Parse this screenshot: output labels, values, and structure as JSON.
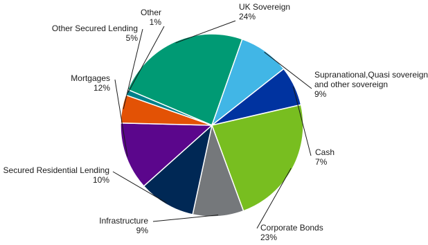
{
  "chart_data": {
    "type": "pie",
    "title": "",
    "legend": "none",
    "slices": [
      {
        "label": "UK Sovereign",
        "value": 24,
        "value_label": "24%",
        "color": "#009a74"
      },
      {
        "label": "Supranational,Quasi sovereign and other sovereign",
        "label_lines": [
          "Supranational,Quasi sovereign",
          "and other sovereign"
        ],
        "value": 9,
        "value_label": "9%",
        "color": "#41b6e6"
      },
      {
        "label": "Cash",
        "value": 7,
        "value_label": "7%",
        "color": "#0033a0"
      },
      {
        "label": "Corporate Bonds",
        "value": 23,
        "value_label": "23%",
        "color": "#78be20"
      },
      {
        "label": "Infrastructure",
        "value": 9,
        "value_label": "9%",
        "color": "#75787b"
      },
      {
        "label": "Secured Residential Lending",
        "value": 10,
        "value_label": "10%",
        "color": "#002855"
      },
      {
        "label": "Mortgages",
        "value": 12,
        "value_label": "12%",
        "color": "#5b068c"
      },
      {
        "label": "Other Secured Lending",
        "value": 5,
        "value_label": "5%",
        "color": "#e35205"
      },
      {
        "label": "Other",
        "value": 1,
        "value_label": "1%",
        "color": "#00818a"
      }
    ]
  }
}
